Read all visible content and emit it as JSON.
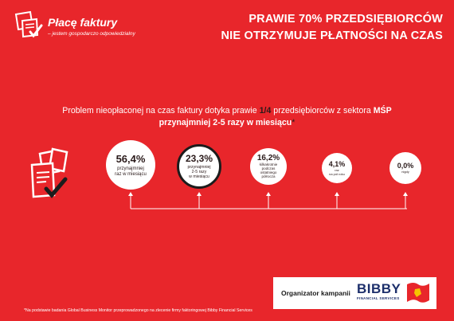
{
  "brand": {
    "title": "Płacę faktury",
    "subtitle": "– jestem gospodarczo odpowiedzialny"
  },
  "headline": {
    "line1": "PRAWIE 70% PRZEDSIĘBIORCÓW",
    "line2": "NIE OTRZYMUJE PŁATNOŚCI NA CZAS"
  },
  "problem": {
    "part1": "Problem nieopłaconej na czas faktury dotyka prawie ",
    "fraction": "1/4",
    "part2": " przedsiębiorców z sektora ",
    "sector": "MŚP",
    "line2": "przynajmniej 2-5 razy w miesiącu",
    "star": "*"
  },
  "stats": [
    {
      "value": "56,4%",
      "label": "przynajmniej\nraz w miesiącu"
    },
    {
      "value": "23,3%",
      "label": "przynajmniej\n2-5 razy\nw miesiącu"
    },
    {
      "value": "16,2%",
      "label": "kilkakrotnie\npodczas\nostatniego\npółrocza"
    },
    {
      "value": "4,1%",
      "label": "raz\nna pół roku"
    },
    {
      "value": "0,0%",
      "label": "nigdy"
    }
  ],
  "organizer": {
    "label": "Organizator kampanii",
    "company": "BIBBY",
    "company_sub": "FINANCIAL SERVICES"
  },
  "footnote": "*Na podstawie badania Global Business Monitor przeprowadzonego na zlecenie firmy faktoringowej Bibby Financial Services",
  "colors": {
    "background": "#e8262b",
    "highlight": "#2a1a1a",
    "bibby_blue": "#1c2f6b"
  }
}
